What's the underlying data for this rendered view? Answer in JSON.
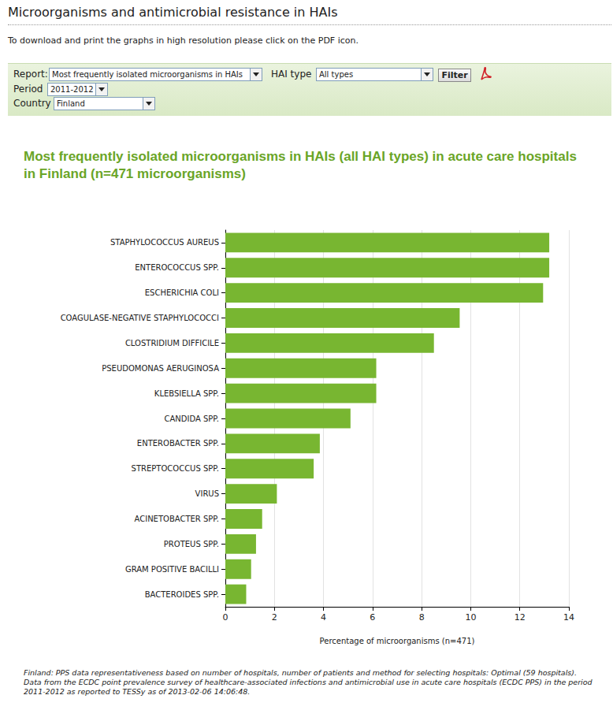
{
  "page": {
    "header": "Microorganisms and antimicrobial resistance in HAIs",
    "instructions": "To download and print the graphs in high resolution please click on the PDF icon.",
    "filters": {
      "report_label": "Report:",
      "report": "Most frequently isolated microorganisms in HAIs",
      "hai_type_label": "HAI type",
      "hai_type": "All types",
      "button": "Filter",
      "period_label": "Period",
      "period": "2011-2012",
      "country_label": "Country",
      "country": "Finland"
    },
    "footnote": [
      "Finland: PPS data representativeness based on number of hospitals, number of patients and method for selecting hospitals: Optimal (59 hospitals).",
      "Data from the ECDC point prevalence survey of healthcare-associated infections and antimicrobial use in acute care hospitals (ECDC PPS) in the period",
      "2011-2012 as reported to TESSy as of 2013-02-06 14:06:48."
    ]
  },
  "chart_data": {
    "type": "bar",
    "orientation": "horizontal",
    "title": "Most frequently isolated microorganisms in HAIs (all HAI types) in acute care hospitals in Finland (n=471 microorganisms)",
    "xlabel": "Percentage of microorganisms (n=471)",
    "categories": [
      "STAPHYLOCOCCUS AUREUS",
      "ENTEROCOCCUS SPP.",
      "ESCHERICHIA COLI",
      "COAGULASE-NEGATIVE STAPHYLOCOCCI",
      "CLOSTRIDIUM DIFFICILE",
      "PSEUDOMONAS AERUGINOSA",
      "KLEBSIELLA SPP.",
      "CANDIDA SPP.",
      "ENTEROBACTER SPP.",
      "STREPTOCOCCUS SPP.",
      "VIRUS",
      "ACINETOBACTER SPP.",
      "PROTEUS SPP.",
      "GRAM POSITIVE BACILLI",
      "BACTEROIDES SPP."
    ],
    "values": [
      13.2,
      13.2,
      12.95,
      9.55,
      8.5,
      6.15,
      6.15,
      5.1,
      3.85,
      3.6,
      2.1,
      1.5,
      1.25,
      1.05,
      0.85
    ],
    "color": "#78b631",
    "xlim": [
      0,
      14
    ],
    "xticks": [
      0,
      2,
      4,
      6,
      8,
      10,
      12,
      14
    ],
    "grid": true
  }
}
